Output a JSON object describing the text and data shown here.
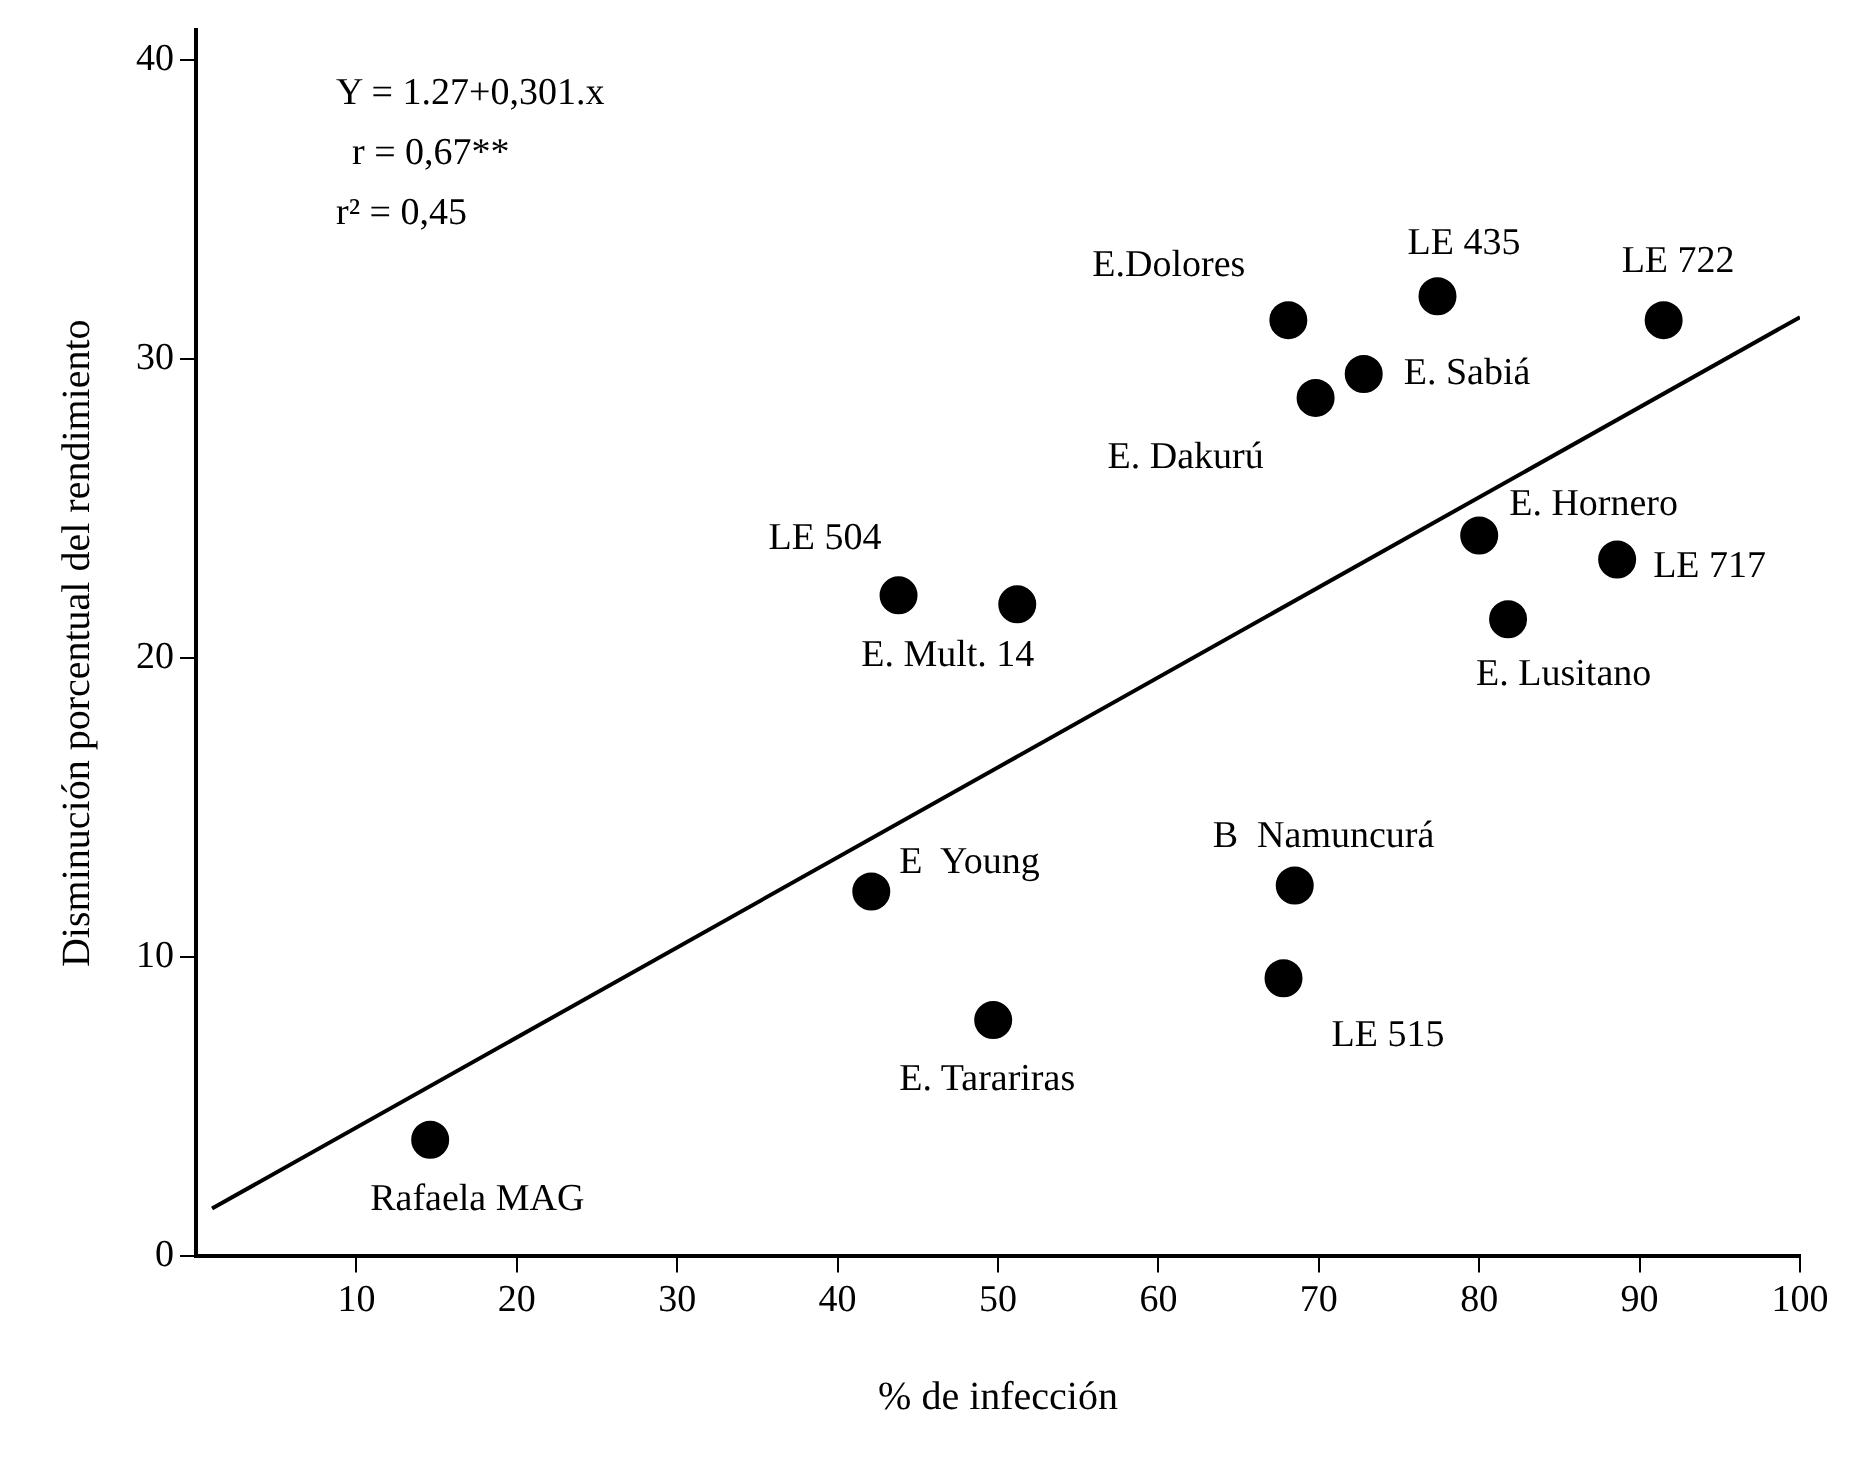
{
  "chart_data": {
    "type": "scatter",
    "xlabel": "% de infección",
    "ylabel": "Disminución porcentual del rendimiento",
    "xlim": [
      0,
      100
    ],
    "xticks": [
      10,
      20,
      30,
      40,
      50,
      60,
      70,
      80,
      90,
      100
    ],
    "ylim": [
      0,
      41
    ],
    "yticks": [
      0,
      10,
      20,
      30,
      40
    ],
    "grid": false,
    "legend": false,
    "marker": "circle",
    "series": [
      {
        "color": "#000000",
        "x": [
          14.6,
          42.1,
          49.7,
          43.8,
          51.2,
          68.5,
          67.8,
          68.1,
          69.8,
          72.8,
          77.4,
          91.5,
          80,
          88.6,
          81.8
        ],
        "values": [
          3.9,
          12.2,
          7.9,
          22.1,
          21.8,
          12.4,
          9.3,
          31.3,
          28.7,
          29.5,
          32.1,
          31.3,
          24.1,
          23.3,
          21.3
        ]
      },
      {
        "type": "line",
        "color": "#000000",
        "marker": "none",
        "line_style": "solid",
        "x": [
          1,
          100
        ],
        "values": [
          1.6,
          31.4
        ]
      }
    ],
    "annotations": [
      "Y = 1.27+0,301.x",
      "r = 0,67**",
      "r² = 0,45",
      {
        "text": "Rafaela MAG",
        "x": 14.6,
        "y": 3.9
      },
      {
        "text": "E  Young",
        "x": 42.1,
        "y": 12.2
      },
      {
        "text": "E. Tarariras",
        "x": 49.7,
        "y": 7.9
      },
      {
        "text": "LE 504",
        "x": 43.8,
        "y": 22.1
      },
      {
        "text": "E. Mult. 14",
        "x": 51.2,
        "y": 21.8
      },
      {
        "text": "B  Namuncurá",
        "x": 68.5,
        "y": 12.4
      },
      {
        "text": "LE 515",
        "x": 67.8,
        "y": 9.3
      },
      {
        "text": "E.Dolores",
        "x": 68.1,
        "y": 31.3
      },
      {
        "text": "E. Dakurú",
        "x": 69.8,
        "y": 28.7
      },
      {
        "text": "E. Sabiá",
        "x": 72.8,
        "y": 29.5
      },
      {
        "text": "LE 435",
        "x": 77.4,
        "y": 32.1
      },
      {
        "text": "LE 722",
        "x": 91.5,
        "y": 31.3
      },
      {
        "text": "E. Hornero",
        "x": 80,
        "y": 24.1
      },
      {
        "text": "LE 717",
        "x": 88.6,
        "y": 23.3
      },
      {
        "text": "E. Lusitano",
        "x": 81.8,
        "y": 21.3
      }
    ]
  }
}
